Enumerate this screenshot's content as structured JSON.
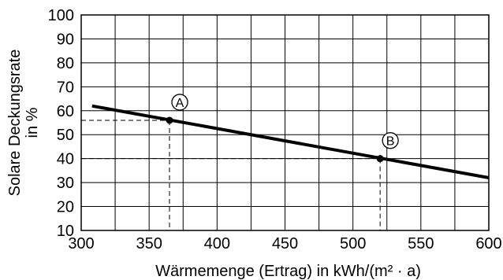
{
  "chart_data": {
    "type": "line",
    "xlabel": "Wärmemenge (Ertrag) in kWh/(m² · a)",
    "ylabel_lines": [
      "Solare Deckungsrate",
      "in %"
    ],
    "xlim": [
      300,
      600
    ],
    "ylim": [
      10,
      100
    ],
    "x_ticks": [
      300,
      350,
      400,
      450,
      500,
      550,
      600
    ],
    "y_ticks": [
      10,
      20,
      30,
      40,
      50,
      60,
      70,
      80,
      90,
      100
    ],
    "grid": true,
    "series": [
      {
        "x": [
          308,
          600
        ],
        "y": [
          62,
          32
        ]
      }
    ],
    "markers": [
      {
        "label": "A",
        "x": 365,
        "y": 56
      },
      {
        "label": "B",
        "x": 520,
        "y": 40
      }
    ]
  }
}
